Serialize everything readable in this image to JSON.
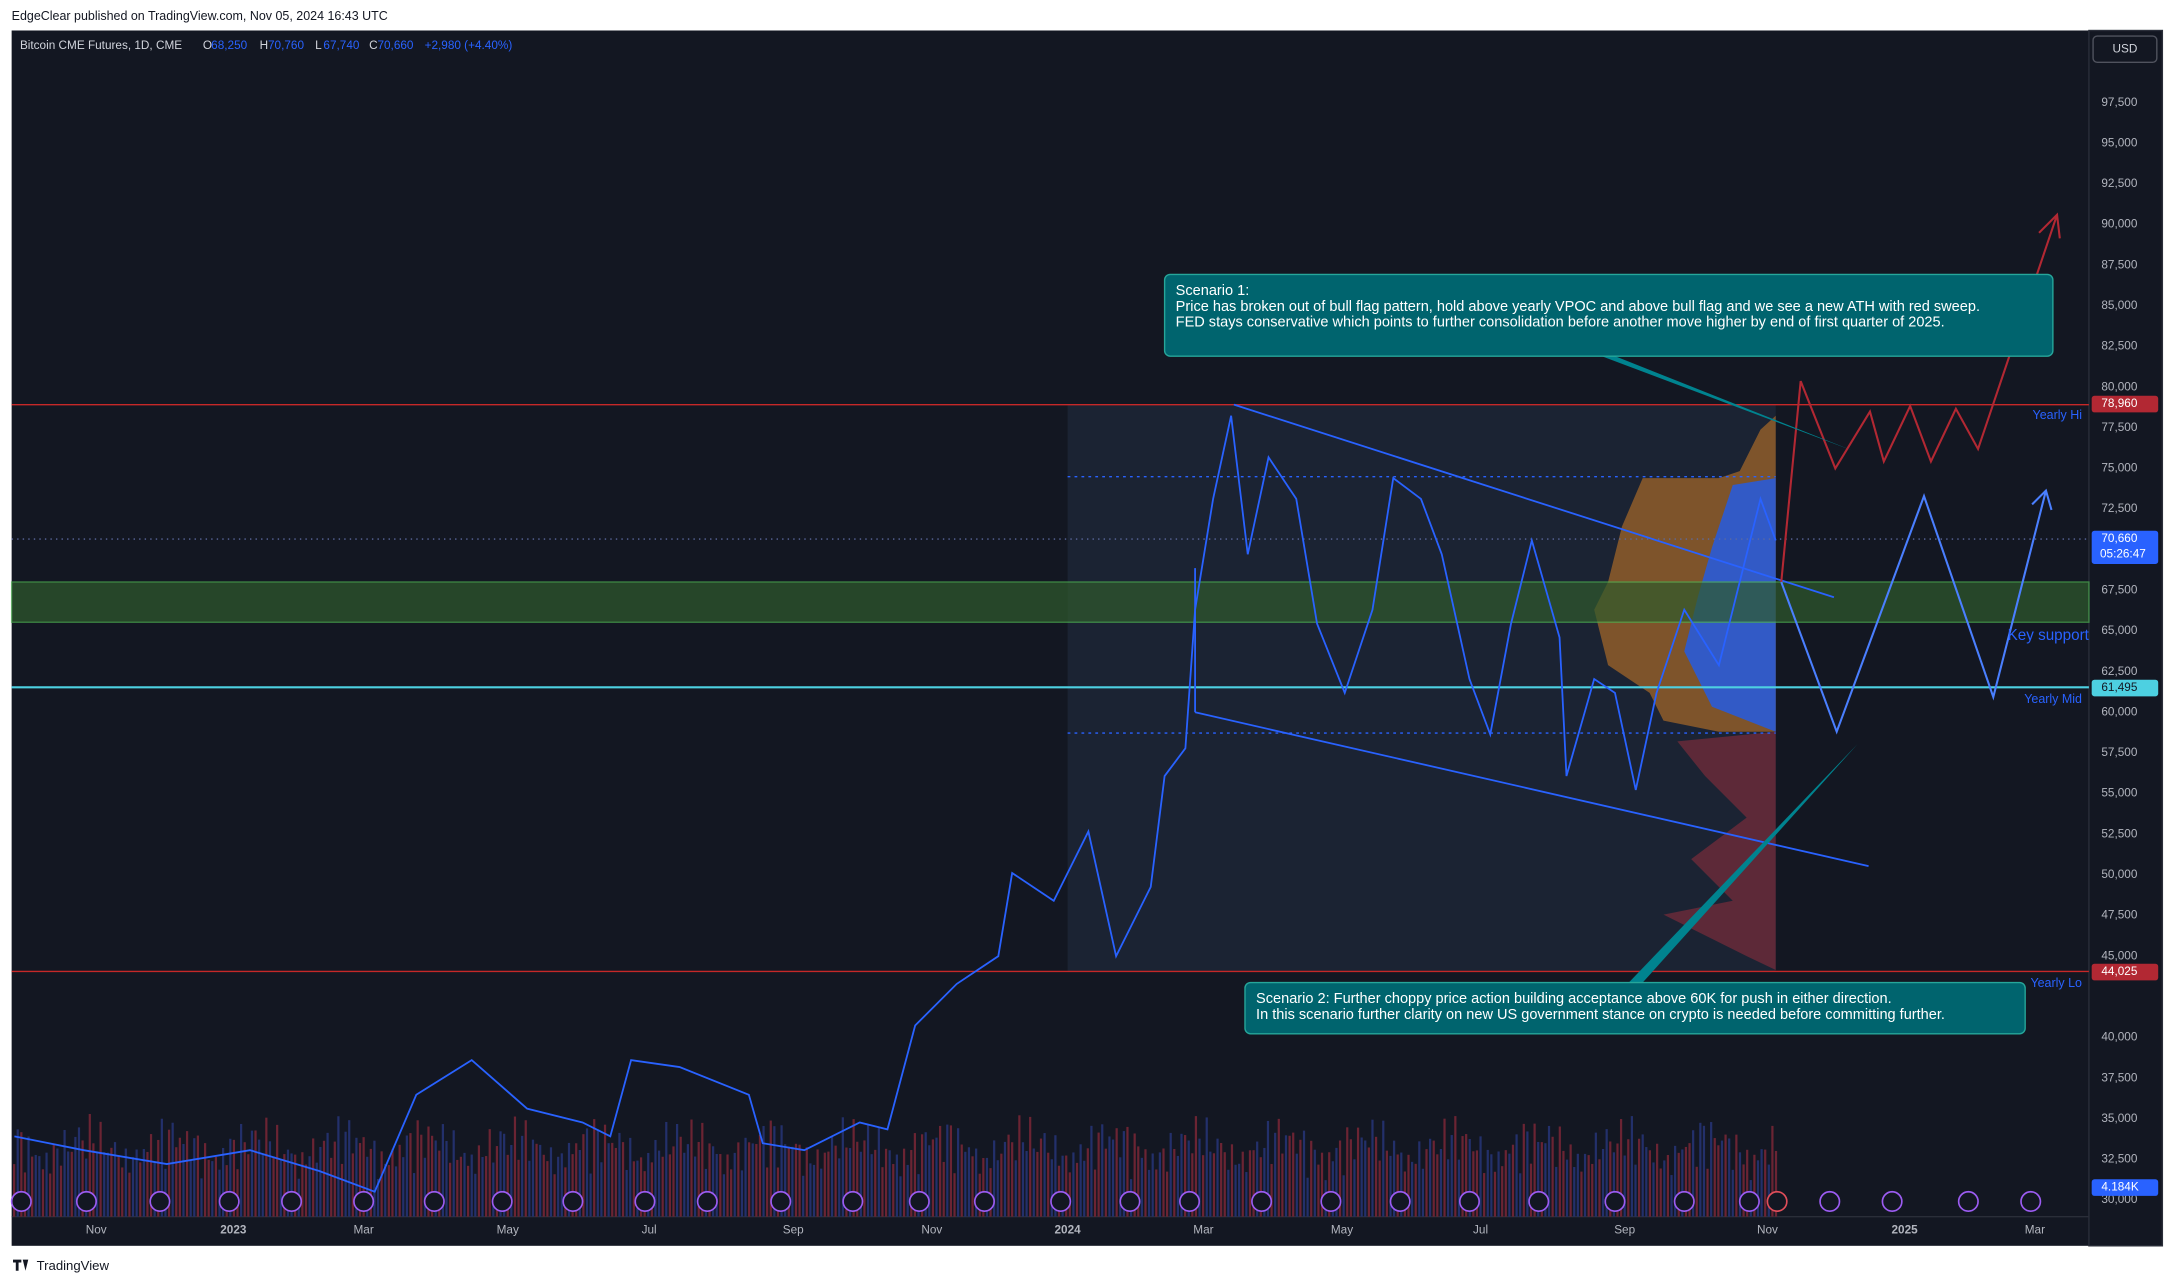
{
  "header": {
    "publisher": "EdgeClear published on TradingView.com, Nov 05, 2024 16:43 UTC"
  },
  "legend": {
    "symbol": "Bitcoin CME Futures, 1D, CME",
    "items": [
      {
        "key": "O",
        "value": "68,250"
      },
      {
        "key": "H",
        "value": "70,760"
      },
      {
        "key": "L",
        "value": "67,740"
      },
      {
        "key": "C",
        "value": "70,660"
      }
    ],
    "change": "+2,980 (+4.40%)"
  },
  "currency": "USD",
  "price_axis": [
    {
      "value": 97500,
      "label": "97,500"
    },
    {
      "value": 95000,
      "label": "95,000"
    },
    {
      "value": 92500,
      "label": "92,500"
    },
    {
      "value": 90000,
      "label": "90,000"
    },
    {
      "value": 87500,
      "label": "87,500"
    },
    {
      "value": 85000,
      "label": "85,000"
    },
    {
      "value": 82500,
      "label": "82,500"
    },
    {
      "value": 80000,
      "label": "80,000"
    },
    {
      "value": 77500,
      "label": "77,500"
    },
    {
      "value": 75000,
      "label": "75,000"
    },
    {
      "value": 72500,
      "label": "72,500"
    },
    {
      "value": 67500,
      "label": "67,500"
    },
    {
      "value": 65000,
      "label": "65,000"
    },
    {
      "value": 62500,
      "label": "62,500"
    },
    {
      "value": 60000,
      "label": "60,000"
    },
    {
      "value": 57500,
      "label": "57,500"
    },
    {
      "value": 55000,
      "label": "55,000"
    },
    {
      "value": 52500,
      "label": "52,500"
    },
    {
      "value": 50000,
      "label": "50,000"
    },
    {
      "value": 47500,
      "label": "47,500"
    },
    {
      "value": 45000,
      "label": "45,000"
    },
    {
      "value": 40000,
      "label": "40,000"
    },
    {
      "value": 37500,
      "label": "37,500"
    },
    {
      "value": 35000,
      "label": "35,000"
    },
    {
      "value": 32500,
      "label": "32,500"
    },
    {
      "value": 30000,
      "label": "30,000"
    }
  ],
  "price_tags": [
    {
      "value": 78960,
      "label": "78,960",
      "color": "#b22833"
    },
    {
      "value": 70660,
      "label": "70,660",
      "countdown": "05:26:47",
      "color": "#2962ff"
    },
    {
      "value": 61495,
      "label": "61,495",
      "color": "#4dd0e1"
    },
    {
      "value": 44025,
      "label": "44,025",
      "color": "#b22833"
    }
  ],
  "volume_tag": "4.184K",
  "time_axis": [
    "Nov",
    "2023",
    "Mar",
    "May",
    "Jul",
    "Sep",
    "Nov",
    "2024",
    "Mar",
    "May",
    "Jul",
    "Sep",
    "Nov",
    "2025",
    "Mar"
  ],
  "levels": {
    "yearly_hi": "Yearly Hi",
    "key_support": "Key support",
    "yearly_mid": "Yearly Mid",
    "yearly_lo": "Yearly Lo"
  },
  "annotations": {
    "scenario_1": [
      "Scenario 1:",
      "Price has broken out of bull flag pattern, hold above yearly VPOC and above bull flag and we see a new ATH with red sweep.",
      "FED stays conservative which points to further consolidation before another move higher by end of first quarter of 2025."
    ],
    "scenario_2": [
      "Scenario 2: Further choppy price action building acceptance above 60K for push in either direction.",
      "In this scenario further clarity on new US government stance on crypto is needed before committing further."
    ]
  },
  "footer": "TradingView"
}
